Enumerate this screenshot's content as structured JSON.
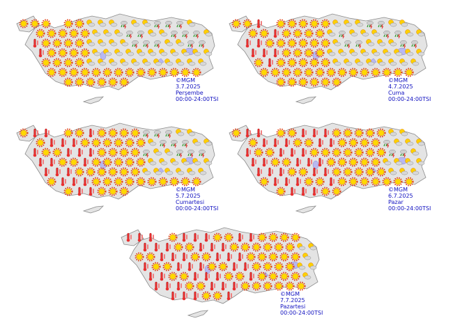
{
  "panels": [
    {
      "copyright": "©MGM",
      "date": "3.7.2025",
      "day": "Perşembe",
      "time": "00:00-24:00TSI"
    },
    {
      "copyright": "©MGM",
      "date": "4.7.2025",
      "day": "Cuma",
      "time": "00:00-24:00TSI"
    },
    {
      "copyright": "©MGM",
      "date": "5.7.2025",
      "day": "Cumartesi",
      "time": "00:00-24:00TSI"
    },
    {
      "copyright": "©MGM",
      "date": "6.7.2025",
      "day": "Pazar",
      "time": "00:00-24:00TSI"
    },
    {
      "copyright": "©MGM",
      "date": "7.7.2025",
      "day": "Pazartesi",
      "time": "00:00-24:00TSI"
    }
  ]
}
